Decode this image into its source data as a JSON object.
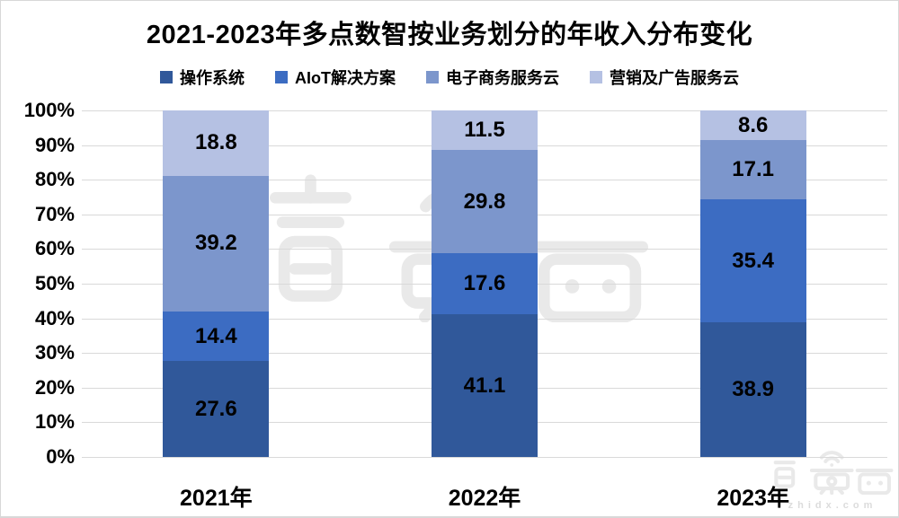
{
  "title": "2021-2023年多点数智按业务划分的年收入分布变化",
  "watermark": {
    "logo": "智東西",
    "site": "zhidx.com"
  },
  "chart_data": {
    "type": "bar",
    "variant": "stacked-100-percent-column",
    "title": "2021-2023年多点数智按业务划分的年收入分布变化",
    "categories": [
      "2021年",
      "2022年",
      "2023年"
    ],
    "series": [
      {
        "name": "操作系统",
        "color": "#30589A",
        "values": [
          27.6,
          41.1,
          38.9
        ]
      },
      {
        "name": "AIoT解决方案",
        "color": "#3C6CC2",
        "values": [
          14.4,
          17.6,
          35.4
        ]
      },
      {
        "name": "电子商务服务云",
        "color": "#7C96CC",
        "values": [
          39.2,
          29.8,
          17.1
        ]
      },
      {
        "name": "营销及广告服务云",
        "color": "#B5C1E3",
        "values": [
          18.8,
          11.5,
          8.6
        ]
      }
    ],
    "xlabel": "",
    "ylabel": "",
    "y_axis": {
      "min": 0,
      "max": 100,
      "step": 10,
      "suffix": "%"
    },
    "y_tick_labels": [
      "0%",
      "10%",
      "20%",
      "30%",
      "40%",
      "50%",
      "60%",
      "70%",
      "80%",
      "90%",
      "100%"
    ],
    "grid": true,
    "gridline_color": "#D9D9D9",
    "legend_position": "top",
    "data_labels": true
  }
}
